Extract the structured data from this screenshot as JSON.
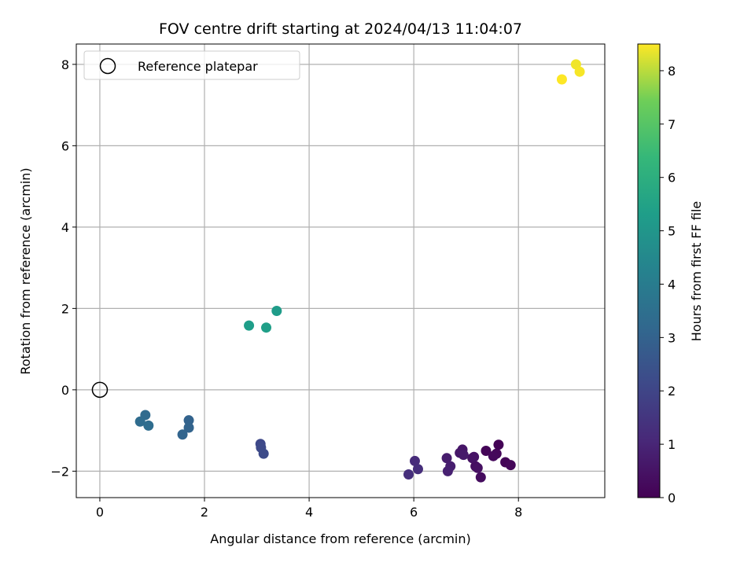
{
  "chart_data": {
    "type": "scatter",
    "title": "FOV centre drift starting at 2024/04/13 11:04:07",
    "xlabel": "Angular distance from reference (arcmin)",
    "ylabel": "Rotation from reference (arcmin)",
    "xlim": [
      -0.45,
      9.65
    ],
    "ylim": [
      -2.65,
      8.5
    ],
    "xticks": [
      0,
      2,
      4,
      6,
      8
    ],
    "xtick_labels": [
      "0",
      "2",
      "4",
      "6",
      "8"
    ],
    "yticks": [
      -2,
      0,
      2,
      4,
      6,
      8
    ],
    "ytick_labels": [
      "−2",
      "0",
      "2",
      "4",
      "6",
      "8"
    ],
    "grid": true,
    "legend": {
      "placement": "top-left",
      "entries": [
        "Reference platepar"
      ]
    },
    "reference_point": {
      "x": 0,
      "y": 0,
      "label": "Reference platepar"
    },
    "colorbar": {
      "label": "Hours from first FF file",
      "colormap": "viridis",
      "range": [
        0,
        8.5
      ],
      "ticks": [
        0,
        1,
        2,
        3,
        4,
        5,
        6,
        7,
        8
      ],
      "tick_labels": [
        "0",
        "1",
        "2",
        "3",
        "4",
        "5",
        "6",
        "7",
        "8"
      ]
    },
    "points": [
      {
        "x": 7.62,
        "y": -1.35,
        "h": 0.05
      },
      {
        "x": 7.38,
        "y": -1.5,
        "h": 0.1
      },
      {
        "x": 7.58,
        "y": -1.57,
        "h": 0.15
      },
      {
        "x": 7.52,
        "y": -1.63,
        "h": 0.2
      },
      {
        "x": 7.75,
        "y": -1.78,
        "h": 0.1
      },
      {
        "x": 7.85,
        "y": -1.85,
        "h": 0.15
      },
      {
        "x": 7.28,
        "y": -2.15,
        "h": 0.3
      },
      {
        "x": 7.18,
        "y": -1.88,
        "h": 0.35
      },
      {
        "x": 7.22,
        "y": -1.92,
        "h": 0.4
      },
      {
        "x": 7.12,
        "y": -1.68,
        "h": 0.45
      },
      {
        "x": 7.15,
        "y": -1.65,
        "h": 0.5
      },
      {
        "x": 6.93,
        "y": -1.47,
        "h": 0.55
      },
      {
        "x": 6.88,
        "y": -1.55,
        "h": 0.6
      },
      {
        "x": 6.95,
        "y": -1.6,
        "h": 0.65
      },
      {
        "x": 6.63,
        "y": -1.68,
        "h": 0.75
      },
      {
        "x": 6.7,
        "y": -1.88,
        "h": 0.8
      },
      {
        "x": 6.65,
        "y": -2.0,
        "h": 0.85
      },
      {
        "x": 6.02,
        "y": -1.75,
        "h": 1.2
      },
      {
        "x": 6.08,
        "y": -1.95,
        "h": 1.25
      },
      {
        "x": 5.9,
        "y": -2.08,
        "h": 1.3
      },
      {
        "x": 3.07,
        "y": -1.33,
        "h": 2.1
      },
      {
        "x": 3.08,
        "y": -1.42,
        "h": 2.15
      },
      {
        "x": 3.13,
        "y": -1.57,
        "h": 2.2
      },
      {
        "x": 1.7,
        "y": -0.75,
        "h": 3.0
      },
      {
        "x": 1.7,
        "y": -0.93,
        "h": 3.05
      },
      {
        "x": 1.58,
        "y": -1.1,
        "h": 3.1
      },
      {
        "x": 0.87,
        "y": -0.62,
        "h": 3.3
      },
      {
        "x": 0.77,
        "y": -0.78,
        "h": 3.35
      },
      {
        "x": 0.93,
        "y": -0.88,
        "h": 3.4
      },
      {
        "x": 3.38,
        "y": 1.94,
        "h": 5.25
      },
      {
        "x": 2.85,
        "y": 1.58,
        "h": 5.3
      },
      {
        "x": 3.18,
        "y": 1.53,
        "h": 5.35
      },
      {
        "x": 9.1,
        "y": 8.0,
        "h": 8.4
      },
      {
        "x": 9.17,
        "y": 7.82,
        "h": 8.45
      },
      {
        "x": 8.83,
        "y": 7.63,
        "h": 8.5
      }
    ]
  }
}
